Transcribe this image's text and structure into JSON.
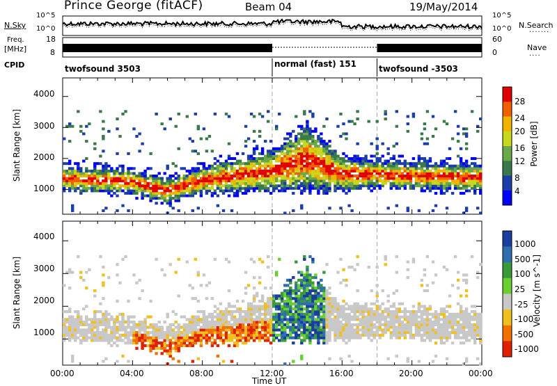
{
  "header": {
    "site": "Prince George (fitACF)",
    "beam": "Beam 04",
    "date": "19/May/2014"
  },
  "noise_panel": {
    "left_label": "N.Sky",
    "right_label": "N.Search",
    "left_ticks": [
      "10^5",
      "10^0"
    ],
    "right_ticks": [
      "10^5",
      "10^0"
    ]
  },
  "freq_panel": {
    "left_label_1": "Freq.",
    "left_label_2": "[MHz]",
    "right_label": "Nave",
    "left_ticks": [
      "18",
      "8"
    ],
    "right_ticks": [
      "60",
      "0"
    ]
  },
  "cpid": {
    "label": "CPID",
    "segments": [
      {
        "name": "twofsound 3503",
        "start": "00:00",
        "end": "12:00"
      },
      {
        "name": "normal (fast) 151",
        "start": "12:00",
        "end": "18:00"
      },
      {
        "name": "twofsound -3503",
        "start": "18:00",
        "end": "24:00"
      }
    ]
  },
  "colors": {
    "power_scale": [
      "#0000ff",
      "#1c3ea8",
      "#3a7a4a",
      "#6aa84a",
      "#c8d820",
      "#f0b400",
      "#f06000",
      "#e00000"
    ],
    "velocity_scale": [
      "#1a3ea0",
      "#2f6fb0",
      "#3a9a3a",
      "#6ad030",
      "#c8c8c8",
      "#f0c020",
      "#f07000",
      "#e02000"
    ],
    "background": "#ffffff"
  },
  "chart_data": [
    {
      "type": "heatmap",
      "title": "Power",
      "xlabel": "",
      "ylabel": "Slant Range [km]",
      "x_ticks": [
        "00:00",
        "04:00",
        "08:00",
        "12:00",
        "16:00",
        "20:00",
        "00:00"
      ],
      "y_ticks": [
        "1000",
        "2000",
        "3000",
        "4000"
      ],
      "ylim": [
        200,
        4600
      ],
      "xlim": [
        0,
        24
      ],
      "colorbar_label": "Power [dB]",
      "colorbar_ticks": [
        "4",
        "8",
        "12",
        "16",
        "20",
        "24",
        "28"
      ],
      "colorbar_range": [
        0,
        32
      ],
      "main_echo_band_km": [
        {
          "t": 0,
          "range": [
            1000,
            1700
          ]
        },
        {
          "t": 4,
          "range": [
            900,
            1600
          ]
        },
        {
          "t": 6,
          "range": [
            600,
            1300
          ]
        },
        {
          "t": 8,
          "range": [
            900,
            1700
          ]
        },
        {
          "t": 12,
          "range": [
            1000,
            2200
          ]
        },
        {
          "t": 14,
          "range": [
            1000,
            3000
          ]
        },
        {
          "t": 16,
          "range": [
            1000,
            2000
          ]
        },
        {
          "t": 18,
          "range": [
            1100,
            1900
          ]
        },
        {
          "t": 22,
          "range": [
            1000,
            1800
          ]
        },
        {
          "t": 24,
          "range": [
            1000,
            1800
          ]
        }
      ]
    },
    {
      "type": "heatmap",
      "title": "Velocity",
      "xlabel": "Time UT",
      "ylabel": "Slant Range [km]",
      "x_ticks": [
        "00:00",
        "04:00",
        "08:00",
        "12:00",
        "16:00",
        "20:00",
        "00:00"
      ],
      "y_ticks": [
        "1000",
        "2000",
        "3000",
        "4000"
      ],
      "ylim": [
        200,
        4600
      ],
      "xlim": [
        0,
        24
      ],
      "colorbar_label": "Velocity [m s^-1]",
      "colorbar_ticks": [
        "1000",
        "500",
        "100",
        "25",
        "-25",
        "-100",
        "-500",
        "-1000"
      ]
    }
  ]
}
